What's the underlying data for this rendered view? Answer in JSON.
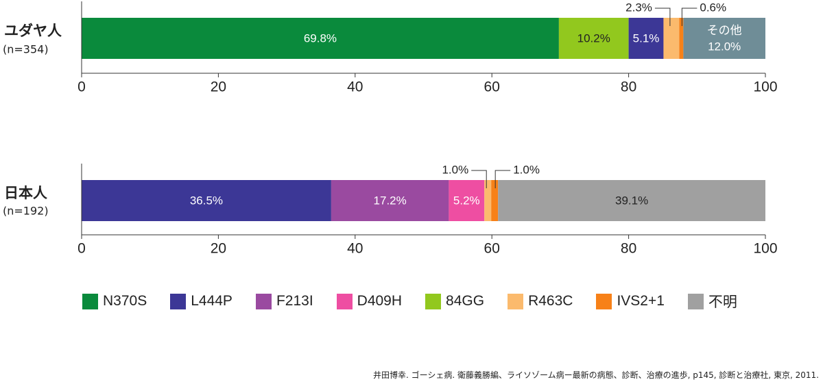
{
  "chart_data": [
    {
      "type": "bar",
      "orientation": "horizontal-stacked",
      "category": "ユダヤ人",
      "n_label": "(n=354)",
      "xlim": [
        0,
        100
      ],
      "xticks": [
        "0",
        "20",
        "40",
        "60",
        "80",
        "100"
      ],
      "segments": [
        {
          "series": "N370S",
          "value": 69.8,
          "label": "69.8%",
          "label_position": "inside"
        },
        {
          "series": "84GG",
          "value": 10.2,
          "label": "10.2%",
          "label_position": "inside"
        },
        {
          "series": "L444P",
          "value": 5.1,
          "label": "5.1%",
          "label_position": "inside"
        },
        {
          "series": "R463C",
          "value": 2.3,
          "label": "2.3%",
          "label_position": "callout-left"
        },
        {
          "series": "IVS2+1",
          "value": 0.6,
          "label": "0.6%",
          "label_position": "callout-right"
        },
        {
          "series": "その他",
          "value": 12.0,
          "label_line1": "その他",
          "label": "12.0%",
          "label_position": "inside"
        }
      ]
    },
    {
      "type": "bar",
      "orientation": "horizontal-stacked",
      "category": "日本人",
      "n_label": "(n=192)",
      "xlim": [
        0,
        100
      ],
      "xticks": [
        "0",
        "20",
        "40",
        "60",
        "80",
        "100"
      ],
      "segments": [
        {
          "series": "L444P",
          "value": 36.5,
          "label": "36.5%",
          "label_position": "inside"
        },
        {
          "series": "F213I",
          "value": 17.2,
          "label": "17.2%",
          "label_position": "inside"
        },
        {
          "series": "D409H",
          "value": 5.2,
          "label": "5.2%",
          "label_position": "inside"
        },
        {
          "series": "R463C",
          "value": 1.0,
          "label": "1.0%",
          "label_position": "callout-left"
        },
        {
          "series": "IVS2+1",
          "value": 1.0,
          "label": "1.0%",
          "label_position": "callout-right"
        },
        {
          "series": "不明",
          "value": 39.1,
          "label": "39.1%",
          "label_position": "inside"
        }
      ]
    }
  ],
  "colors": {
    "N370S": "#0a8a3c",
    "L444P": "#3c3796",
    "F213I": "#9a4aa0",
    "D409H": "#ee4ea2",
    "84GG": "#92c81e",
    "R463C": "#fbba6d",
    "IVS2+1": "#f78118",
    "不明": "#a0a0a0",
    "その他": "#6f8d97"
  },
  "legend": [
    {
      "name": "N370S",
      "color": "#0a8a3c"
    },
    {
      "name": "L444P",
      "color": "#3c3796"
    },
    {
      "name": "F213I",
      "color": "#9a4aa0"
    },
    {
      "name": "D409H",
      "color": "#ee4ea2"
    },
    {
      "name": "84GG",
      "color": "#92c81e"
    },
    {
      "name": "R463C",
      "color": "#fbba6d"
    },
    {
      "name": "IVS2+1",
      "color": "#f78118"
    },
    {
      "name": "不明",
      "color": "#a0a0a0"
    }
  ],
  "source": "井田博幸. ゴーシェ病. 衛藤義勝編、ライソゾーム病ー最新の病態、診断、治療の進歩, p145, 診断と治療社, 東京, 2011."
}
